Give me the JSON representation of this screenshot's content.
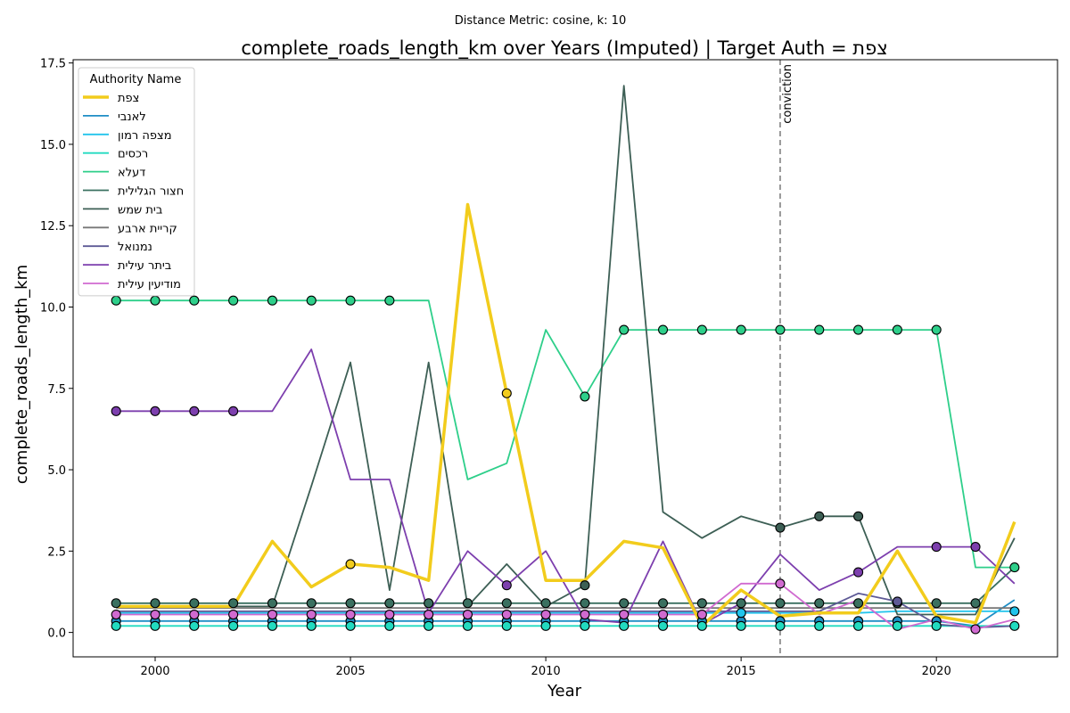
{
  "chart_data": {
    "type": "line",
    "suptitle": "Distance Metric: cosine, k: 10",
    "title": "complete_roads_length_km over Years (Imputed) | Target Auth = צפת",
    "xlabel": "Year",
    "ylabel": "complete_roads_length_km",
    "xlim": [
      1997.9,
      2023.1
    ],
    "ylim": [
      -0.75,
      17.6
    ],
    "xticks": [
      2000,
      2005,
      2010,
      2015,
      2020
    ],
    "yticks": [
      0.0,
      2.5,
      5.0,
      7.5,
      10.0,
      12.5,
      15.0,
      17.5
    ],
    "xtick_labels": [
      "2000",
      "2005",
      "2010",
      "2015",
      "2020"
    ],
    "ytick_labels": [
      "0.0",
      "2.5",
      "5.0",
      "7.5",
      "10.0",
      "12.5",
      "15.0",
      "17.5"
    ],
    "grid": false,
    "legend": {
      "title": "Authority Name",
      "placement": "upper-left"
    },
    "vline": {
      "x": 2016,
      "label": "conviction",
      "color": "#808080"
    },
    "x": [
      1999,
      2000,
      2001,
      2002,
      2003,
      2004,
      2005,
      2006,
      2007,
      2008,
      2009,
      2010,
      2011,
      2012,
      2013,
      2014,
      2015,
      2016,
      2017,
      2018,
      2019,
      2020,
      2021,
      2022
    ],
    "series": [
      {
        "name": "צפת",
        "color": "#f2cc1c",
        "width": 3.5,
        "target": true,
        "values": [
          0.8,
          0.8,
          0.8,
          0.8,
          2.8,
          1.4,
          2.1,
          2.0,
          1.6,
          13.15,
          7.35,
          1.6,
          1.6,
          2.8,
          2.6,
          0.2,
          1.3,
          0.5,
          0.6,
          0.6,
          2.5,
          0.5,
          0.3,
          3.4
        ],
        "imputed": [
          2005,
          2009
        ]
      },
      {
        "name": "לאנבי",
        "color": "#1f8ec5",
        "width": 1.8,
        "values": [
          0.35,
          0.35,
          0.35,
          0.35,
          0.35,
          0.35,
          0.35,
          0.35,
          0.35,
          0.35,
          0.35,
          0.35,
          0.35,
          0.35,
          0.35,
          0.35,
          0.35,
          0.35,
          0.35,
          0.35,
          0.35,
          0.35,
          0.2,
          1.0
        ],
        "imputed": [
          1999,
          2000,
          2001,
          2002,
          2003,
          2004,
          2005,
          2006,
          2007,
          2008,
          2009,
          2010,
          2011,
          2012,
          2013,
          2014,
          2015,
          2016,
          2017,
          2018,
          2019,
          2020
        ]
      },
      {
        "name": "מצפה רמון",
        "color": "#22c4ec",
        "width": 1.8,
        "values": [
          0.6,
          0.6,
          0.6,
          0.6,
          0.6,
          0.6,
          0.6,
          0.6,
          0.6,
          0.6,
          0.6,
          0.6,
          0.6,
          0.6,
          0.6,
          0.6,
          0.6,
          0.6,
          0.6,
          0.6,
          0.65,
          0.65,
          0.65,
          0.65
        ],
        "imputed": [
          2015,
          2022
        ]
      },
      {
        "name": "רכסים",
        "color": "#22dbc0",
        "width": 1.8,
        "values": [
          0.2,
          0.2,
          0.2,
          0.2,
          0.2,
          0.2,
          0.2,
          0.2,
          0.2,
          0.2,
          0.2,
          0.2,
          0.2,
          0.2,
          0.2,
          0.2,
          0.2,
          0.2,
          0.2,
          0.2,
          0.2,
          0.2,
          0.2,
          0.2
        ],
        "imputed": [
          1999,
          2000,
          2001,
          2002,
          2003,
          2004,
          2005,
          2006,
          2007,
          2008,
          2009,
          2010,
          2011,
          2012,
          2013,
          2014,
          2015,
          2016,
          2017,
          2018,
          2019,
          2020,
          2022
        ]
      },
      {
        "name": "דעלא",
        "color": "#2ecf8a",
        "width": 1.8,
        "values": [
          10.2,
          10.2,
          10.2,
          10.2,
          10.2,
          10.2,
          10.2,
          10.2,
          10.2,
          4.7,
          5.2,
          9.3,
          7.25,
          9.3,
          9.3,
          9.3,
          9.3,
          9.3,
          9.3,
          9.3,
          9.3,
          9.3,
          2.0,
          2.0
        ],
        "imputed": [
          1999,
          2000,
          2001,
          2002,
          2003,
          2004,
          2005,
          2006,
          2011,
          2012,
          2013,
          2014,
          2015,
          2016,
          2017,
          2018,
          2019,
          2020,
          2022
        ]
      },
      {
        "name": "חצור הגלילית",
        "color": "#3a7060",
        "width": 1.8,
        "values": [
          0.9,
          0.9,
          0.9,
          0.9,
          0.9,
          0.9,
          0.9,
          0.9,
          0.9,
          0.9,
          0.9,
          0.9,
          0.9,
          0.9,
          0.9,
          0.9,
          0.9,
          0.9,
          0.9,
          0.9,
          0.9,
          0.9,
          0.9,
          2.0
        ],
        "imputed": [
          1999,
          2000,
          2001,
          2002,
          2003,
          2004,
          2005,
          2006,
          2007,
          2008,
          2009,
          2010,
          2011,
          2012,
          2013,
          2014,
          2015,
          2016,
          2017,
          2018,
          2019,
          2020,
          2021
        ]
      },
      {
        "name": "בית שמש",
        "color": "#3d5f55",
        "width": 1.8,
        "values": [
          0.8,
          0.8,
          0.8,
          0.8,
          0.8,
          4.5,
          8.3,
          1.3,
          8.3,
          0.8,
          2.1,
          0.8,
          1.45,
          16.8,
          3.7,
          2.9,
          3.57,
          3.22,
          3.57,
          3.57,
          0.55,
          0.55,
          0.55,
          2.9
        ],
        "imputed": [
          2011,
          2016,
          2017,
          2018
        ]
      },
      {
        "name": "קריית ארבע",
        "color": "#787878",
        "width": 1.8,
        "values": [
          0.75,
          0.75,
          0.75,
          0.75,
          0.75,
          0.75,
          0.75,
          0.75,
          0.75,
          0.75,
          0.75,
          0.75,
          0.75,
          0.75,
          0.75,
          0.75,
          0.75,
          0.75,
          0.75,
          0.75,
          0.75,
          0.75,
          0.75,
          0.75
        ],
        "imputed": []
      },
      {
        "name": "נמנואל",
        "color": "#5e5a96",
        "width": 1.8,
        "values": [
          0.65,
          0.65,
          0.65,
          0.65,
          0.65,
          0.65,
          0.65,
          0.65,
          0.65,
          0.65,
          0.65,
          0.65,
          0.65,
          0.65,
          0.65,
          0.65,
          0.65,
          0.65,
          0.65,
          1.2,
          0.95,
          0.25,
          0.15,
          0.2
        ],
        "imputed": [
          2019
        ]
      },
      {
        "name": "ביתר עילית",
        "color": "#7d3fae",
        "width": 1.8,
        "values": [
          6.8,
          6.8,
          6.8,
          6.8,
          6.8,
          8.7,
          4.7,
          4.7,
          0.6,
          2.5,
          1.45,
          2.5,
          0.4,
          0.3,
          2.8,
          0.25,
          0.9,
          2.4,
          1.3,
          1.85,
          2.63,
          2.63,
          2.63,
          1.5
        ],
        "imputed": [
          1999,
          2000,
          2001,
          2002,
          2009,
          2018,
          2020,
          2021
        ]
      },
      {
        "name": "מודיעין עילית",
        "color": "#d06ad0",
        "width": 1.8,
        "values": [
          0.55,
          0.55,
          0.55,
          0.55,
          0.55,
          0.55,
          0.55,
          0.55,
          0.55,
          0.55,
          0.55,
          0.55,
          0.55,
          0.55,
          0.55,
          0.55,
          1.5,
          1.5,
          0.55,
          1.0,
          0.1,
          0.4,
          0.1,
          0.4
        ],
        "imputed": [
          1999,
          2000,
          2001,
          2002,
          2003,
          2004,
          2005,
          2006,
          2007,
          2008,
          2009,
          2010,
          2011,
          2012,
          2013,
          2014,
          2016,
          2021
        ]
      }
    ]
  }
}
